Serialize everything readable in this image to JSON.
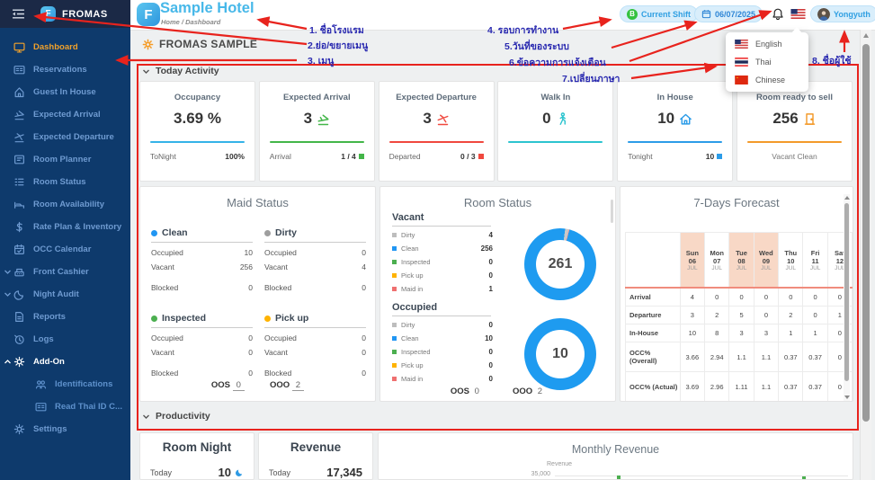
{
  "sidebar": {
    "brand": "FROMAS",
    "items": [
      {
        "label": "Dashboard",
        "icon": "monitor",
        "active": true
      },
      {
        "label": "Reservations",
        "icon": "id-card"
      },
      {
        "label": "Guest In House",
        "icon": "home"
      },
      {
        "label": "Expected Arrival",
        "icon": "plane-arrival"
      },
      {
        "label": "Expected Departure",
        "icon": "plane-departure"
      },
      {
        "label": "Room Planner",
        "icon": "planner"
      },
      {
        "label": "Room Status",
        "icon": "list"
      },
      {
        "label": "Room Availability",
        "icon": "bed"
      },
      {
        "label": "Rate Plan & Inventory",
        "icon": "dollar"
      },
      {
        "label": "OCC Calendar",
        "icon": "calendar"
      },
      {
        "label": "Front Cashier",
        "icon": "cashier",
        "chevron": "down"
      },
      {
        "label": "Night Audit",
        "icon": "moon",
        "chevron": "down"
      },
      {
        "label": "Reports",
        "icon": "report"
      },
      {
        "label": "Logs",
        "icon": "clock"
      },
      {
        "label": "Add-On",
        "icon": "gear",
        "chevron": "up",
        "expanded": true
      },
      {
        "label": "Identifications",
        "icon": "people",
        "sub": true
      },
      {
        "label": "Read Thai ID C...",
        "icon": "id-card",
        "sub": true
      },
      {
        "label": "Settings",
        "icon": "gear"
      }
    ]
  },
  "header": {
    "hotel_name": "Sample Hotel",
    "logo_letter": "F",
    "breadcrumb_home": "Home",
    "breadcrumb_sep": "/",
    "breadcrumb_current": "Dashboard",
    "shift_label": "Current Shift",
    "shift_badge": "B",
    "date": "06/07/2025",
    "user": "Yongyuth"
  },
  "language_menu": {
    "items": [
      {
        "label": "English",
        "flag": "us"
      },
      {
        "label": "Thai",
        "flag": "th"
      },
      {
        "label": "Chinese",
        "flag": "cn"
      }
    ]
  },
  "page": {
    "title": "FROMAS SAMPLE"
  },
  "sections": {
    "today_activity": "Today Activity",
    "productivity": "Productivity"
  },
  "activity_cards": [
    {
      "title": "Occupancy",
      "value": "3.69 %",
      "icon": null,
      "color": "#35b3e8",
      "footer": {
        "label": "ToNight",
        "value": "100%",
        "square": false
      }
    },
    {
      "title": "Expected Arrival",
      "value": "3",
      "icon": "plane-arrival",
      "color": "#43b649",
      "footer": {
        "label": "Arrival",
        "value": "1 / 4",
        "square": true
      }
    },
    {
      "title": "Expected Departure",
      "value": "3",
      "icon": "plane-departure",
      "color": "#f0483e",
      "footer": {
        "label": "Departed",
        "value": "0 / 3",
        "square": true
      }
    },
    {
      "title": "Walk In",
      "value": "0",
      "icon": "walk",
      "color": "#2cc4cf",
      "footer": null
    },
    {
      "title": "In House",
      "value": "10",
      "icon": "house",
      "color": "#2c9ce8",
      "footer": {
        "label": "Tonight",
        "value": "10",
        "square": true
      }
    },
    {
      "title": "Room ready to sell",
      "value": "256",
      "icon": "door",
      "color": "#f39a2a",
      "footer": {
        "center": "Vacant Clean"
      }
    }
  ],
  "maid_status": {
    "title": "Maid Status",
    "groups": [
      {
        "name": "Clean",
        "color": "#2196f3",
        "rows": [
          [
            "Occupied",
            "10"
          ],
          [
            "Vacant",
            "256"
          ],
          [
            "Blocked",
            "0"
          ]
        ]
      },
      {
        "name": "Dirty",
        "color": "#9e9e9e",
        "rows": [
          [
            "Occupied",
            "0"
          ],
          [
            "Vacant",
            "4"
          ],
          [
            "Blocked",
            "0"
          ]
        ]
      },
      {
        "name": "Inspected",
        "color": "#4caf50",
        "rows": [
          [
            "Occupied",
            "0"
          ],
          [
            "Vacant",
            "0"
          ],
          [
            "Blocked",
            "0"
          ]
        ]
      },
      {
        "name": "Pick up",
        "color": "#ffb300",
        "rows": [
          [
            "Occupied",
            "0"
          ],
          [
            "Vacant",
            "0"
          ],
          [
            "Blocked",
            "0"
          ]
        ]
      }
    ],
    "oos_label": "OOS",
    "oos_value": "0",
    "ooo_label": "OOO",
    "ooo_value": "2"
  },
  "room_status": {
    "title": "Room Status",
    "sections": [
      {
        "name": "Vacant",
        "total": "261",
        "legend": [
          {
            "label": "Dirty",
            "value": "4",
            "color": "#bdbdbd"
          },
          {
            "label": "Clean",
            "value": "256",
            "color": "#2196f3"
          },
          {
            "label": "Inspected",
            "value": "0",
            "color": "#4caf50"
          },
          {
            "label": "Pick up",
            "value": "0",
            "color": "#ffb300"
          },
          {
            "label": "Maid in",
            "value": "1",
            "color": "#ef7070"
          }
        ]
      },
      {
        "name": "Occupied",
        "total": "10",
        "legend": [
          {
            "label": "Dirty",
            "value": "0",
            "color": "#bdbdbd"
          },
          {
            "label": "Clean",
            "value": "10",
            "color": "#2196f3"
          },
          {
            "label": "Inspected",
            "value": "0",
            "color": "#4caf50"
          },
          {
            "label": "Pick up",
            "value": "0",
            "color": "#ffb300"
          },
          {
            "label": "Maid in",
            "value": "0",
            "color": "#ef7070"
          }
        ]
      }
    ],
    "donut_color": "#1e9bf0",
    "oos_label": "OOS",
    "oos_value": "0",
    "ooo_label": "OOO",
    "ooo_value": "2"
  },
  "forecast": {
    "title": "7-Days Forecast",
    "days": [
      {
        "dow": "Sun",
        "date": "06",
        "month": "JUL",
        "highlight": true
      },
      {
        "dow": "Mon",
        "date": "07",
        "month": "JUL",
        "highlight": false
      },
      {
        "dow": "Tue",
        "date": "08",
        "month": "JUL",
        "highlight": true
      },
      {
        "dow": "Wed",
        "date": "09",
        "month": "JUL",
        "highlight": true
      },
      {
        "dow": "Thu",
        "date": "10",
        "month": "JUL",
        "highlight": false
      },
      {
        "dow": "Fri",
        "date": "11",
        "month": "JUL",
        "highlight": false
      },
      {
        "dow": "Sat",
        "date": "12",
        "month": "JUL",
        "highlight": false
      }
    ],
    "rows": [
      {
        "label": "Arrival",
        "values": [
          "4",
          "0",
          "0",
          "0",
          "0",
          "0",
          "0"
        ],
        "tall": false
      },
      {
        "label": "Departure",
        "values": [
          "3",
          "2",
          "5",
          "0",
          "2",
          "0",
          "1"
        ],
        "tall": false
      },
      {
        "label": "In-House",
        "values": [
          "10",
          "8",
          "3",
          "3",
          "1",
          "1",
          "0"
        ],
        "tall": false
      },
      {
        "label": "OCC% (Overall)",
        "values": [
          "3.66",
          "2.94",
          "1.1",
          "1.1",
          "0.37",
          "0.37",
          "0"
        ],
        "tall": true
      },
      {
        "label": "OCC% (Actual)",
        "values": [
          "3.69",
          "2.96",
          "1.11",
          "1.1",
          "0.37",
          "0.37",
          "0"
        ],
        "tall": true
      }
    ]
  },
  "productivity": {
    "room_night": {
      "title": "Room Night",
      "label": "Today",
      "value": "10"
    },
    "revenue": {
      "title": "Revenue",
      "label": "Today",
      "value": "17,345"
    },
    "monthly": {
      "title": "Monthly Revenue",
      "series_label": "Revenue",
      "ytick": "35,000"
    }
  },
  "annotations": [
    {
      "label": "1. ชื่อโรงแรม"
    },
    {
      "label": "2.ย่อ/ขยายเมนู"
    },
    {
      "label": "3. เมนู"
    },
    {
      "label": "4. รอบการทำงาน"
    },
    {
      "label": "5.วันที่ของระบบ"
    },
    {
      "label": "6.ข้อความการแจ้งเตือน"
    },
    {
      "label": "7.เปลี่ยนภาษา"
    },
    {
      "label": "8. ชื่อผู้ใช้"
    }
  ]
}
